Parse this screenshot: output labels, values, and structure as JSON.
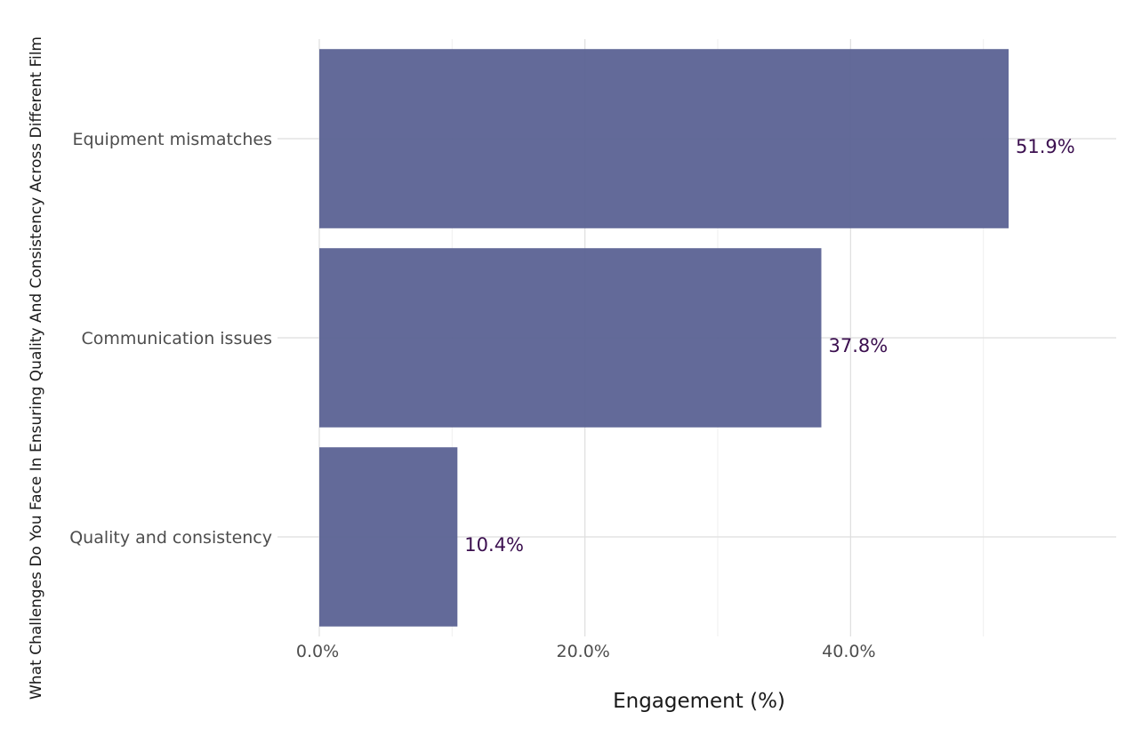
{
  "chart_data": {
    "type": "bar",
    "orientation": "horizontal",
    "title": "",
    "xlabel": "Engagement (%)",
    "ylabel": "What Challenges Do You Face In Ensuring Quality And Consistency Across Different Film",
    "categories": [
      "Equipment mismatches",
      "Communication issues",
      "Quality and consistency"
    ],
    "values": [
      51.9,
      37.8,
      10.4
    ],
    "value_labels": [
      "51.9%",
      "37.8%",
      "10.4%"
    ],
    "xlim": [
      0,
      60
    ],
    "xticks": [
      0,
      20,
      40
    ],
    "xtick_labels": [
      "0.0%",
      "20.0%",
      "40.0%"
    ],
    "grid": true,
    "legend": "none",
    "colors": {
      "bar": "#5b6294",
      "value_label": "#3b0f4f",
      "grid_major": "#dedede",
      "grid_minor": "#efefef"
    }
  }
}
